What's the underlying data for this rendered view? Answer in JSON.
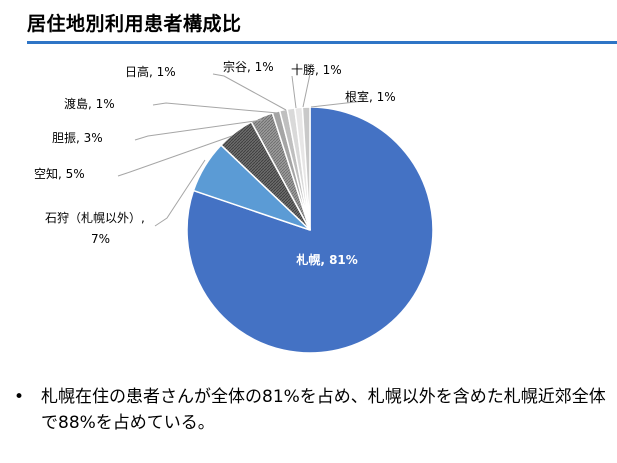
{
  "slide": {
    "title": "居住地別利用患者構成比",
    "accent_color": "#2E75C6"
  },
  "chart_data": {
    "type": "pie",
    "title": "",
    "start_angle_deg": 0,
    "direction": "clockwise",
    "slices": [
      {
        "category": "札幌",
        "value": 81,
        "label": "札幌, 81%",
        "label_placement": "inside",
        "color": "#4472C4"
      },
      {
        "category": "石狩（札幌以外）",
        "value": 7,
        "label_lines": [
          "石狩（札幌以外）,",
          "7%"
        ],
        "label_placement": "outside",
        "color": "#5B9BD5"
      },
      {
        "category": "空知",
        "value": 5,
        "label": "空知, 5%",
        "label_placement": "outside",
        "color": "#595959"
      },
      {
        "category": "胆振",
        "value": 3,
        "label": "胆振, 3%",
        "label_placement": "outside",
        "color": "#7F7F7F"
      },
      {
        "category": "渡島",
        "value": 1,
        "label": "渡島, 1%",
        "label_placement": "outside",
        "color": "#A5A5A5"
      },
      {
        "category": "日高",
        "value": 1,
        "label": "日高, 1%",
        "label_placement": "outside",
        "color": "#BFBFBF"
      },
      {
        "category": "宗谷",
        "value": 1,
        "label": "宗谷, 1%",
        "label_placement": "outside",
        "color": "#D9D9D9"
      },
      {
        "category": "十勝",
        "value": 1,
        "label": "十勝, 1%",
        "label_placement": "outside",
        "color": "#E7E6E6"
      },
      {
        "category": "根室",
        "value": 1,
        "label": "根室, 1%",
        "label_placement": "outside",
        "color": "#C9C9C9"
      }
    ],
    "legend": "none"
  },
  "bullets": [
    {
      "mark": "•",
      "text": "札幌在住の患者さんが全体の81%を占め、札幌以外を含めた札幌近郊全体で88%を占めている。"
    }
  ]
}
